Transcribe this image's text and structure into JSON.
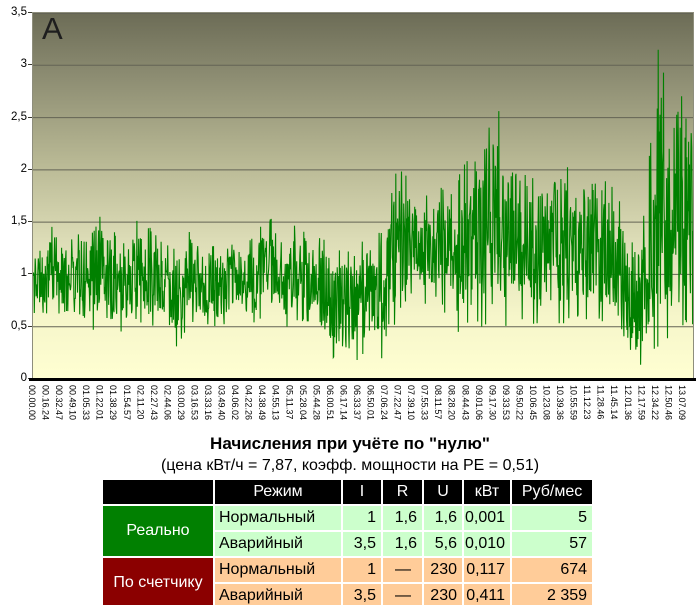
{
  "colors": {
    "line": "#008000",
    "header_bg": "#000000",
    "group_real_bg": "#018001",
    "group_meter_bg": "#8b0000",
    "rows_real_bg": "#ccffcc",
    "rows_meter_bg": "#ffcc99"
  },
  "chart_data": {
    "type": "line",
    "title": "",
    "annotation": "А",
    "xlabel": "",
    "ylabel": "",
    "ylim": [
      0,
      3.5
    ],
    "grid": true,
    "legend": "none",
    "y_ticks": [
      {
        "label": "3,5",
        "value": 3.5
      },
      {
        "label": "3",
        "value": 3
      },
      {
        "label": "2,5",
        "value": 2.5
      },
      {
        "label": "2",
        "value": 2
      },
      {
        "label": "1,5",
        "value": 1.5
      },
      {
        "label": "1",
        "value": 1
      },
      {
        "label": "0,5",
        "value": 0.5
      },
      {
        "label": "0",
        "value": 0
      }
    ],
    "x_labels": [
      "00.00.00",
      "00.16.24",
      "00.32.47",
      "00.49.10",
      "01.05.33",
      "01.22.01",
      "01.38.29",
      "01.54.57",
      "02.11.20",
      "02.27.43",
      "02.44.06",
      "03.00.29",
      "03.16.53",
      "03.33.16",
      "03.49.40",
      "04.06.02",
      "04.22.26",
      "04.38.49",
      "04.55.13",
      "05.11.37",
      "05.28.04",
      "05.44.28",
      "06.00.51",
      "06.17.14",
      "06.33.37",
      "06.50.01",
      "07.06.24",
      "07.22.47",
      "07.39.10",
      "07.55.33",
      "08.11.57",
      "08.28.20",
      "08.44.43",
      "09.01.06",
      "09.17.30",
      "09.33.53",
      "09.50.22",
      "10.06.45",
      "10.23.08",
      "10.39.36",
      "10.55.59",
      "11.12.23",
      "11.28.46",
      "11.45.14",
      "12.01.36",
      "12.17.59",
      "12.34.22",
      "12.50.46",
      "13.07.09"
    ],
    "series": [
      {
        "envelope_by_interval": [
          [
            0.62,
            1.32
          ],
          [
            0.6,
            1.5
          ],
          [
            0.65,
            1.3
          ],
          [
            0.6,
            1.42
          ],
          [
            0.45,
            1.64
          ],
          [
            0.6,
            1.48
          ],
          [
            0.42,
            1.3
          ],
          [
            0.55,
            1.52
          ],
          [
            0.5,
            1.45
          ],
          [
            0.5,
            1.3
          ],
          [
            0.28,
            1.25
          ],
          [
            0.55,
            1.45
          ],
          [
            0.5,
            1.32
          ],
          [
            0.5,
            1.26
          ],
          [
            0.55,
            1.4
          ],
          [
            0.5,
            1.3
          ],
          [
            0.55,
            1.45
          ],
          [
            0.6,
            1.55
          ],
          [
            0.5,
            1.35
          ],
          [
            0.55,
            1.6
          ],
          [
            0.5,
            1.4
          ],
          [
            0.25,
            1.3
          ],
          [
            0.08,
            1.25
          ],
          [
            0.15,
            1.2
          ],
          [
            0.3,
            1.5
          ],
          [
            0.15,
            1.4
          ],
          [
            0.6,
            2.05
          ],
          [
            0.8,
            1.9
          ],
          [
            0.7,
            1.75
          ],
          [
            0.8,
            1.85
          ],
          [
            0.4,
            1.8
          ],
          [
            0.5,
            2.1
          ],
          [
            0.5,
            2.45
          ],
          [
            0.4,
            2.85
          ],
          [
            0.5,
            2.2
          ],
          [
            0.55,
            2.25
          ],
          [
            0.5,
            1.9
          ],
          [
            0.55,
            2.1
          ],
          [
            0.5,
            2.15
          ],
          [
            0.6,
            1.9
          ],
          [
            0.5,
            2.2
          ],
          [
            0.55,
            1.95
          ],
          [
            0.4,
            1.8
          ],
          [
            0.08,
            1.3
          ],
          [
            0.15,
            1.6
          ],
          [
            0.3,
            3.25
          ],
          [
            0.4,
            2.4
          ],
          [
            0.5,
            2.9
          ]
        ]
      }
    ]
  },
  "table": {
    "title": "Начисления при учёте по \"нулю\"",
    "subtitle": "(цена кВт/ч = 7,87, коэфф. мощности на PE = 0,51)",
    "col_headers": [
      "Режим",
      "I",
      "R",
      "U",
      "кВт",
      "Руб/мес"
    ],
    "groups": [
      {
        "label": "Реально",
        "rows": [
          [
            "Нормальный",
            "1",
            "1,6",
            "1,6",
            "0,001",
            "5"
          ],
          [
            "Аварийный",
            "3,5",
            "1,6",
            "5,6",
            "0,010",
            "57"
          ]
        ]
      },
      {
        "label": "По счетчику",
        "rows": [
          [
            "Нормальный",
            "1",
            "—",
            "230",
            "0,117",
            "674"
          ],
          [
            "Аварийный",
            "3,5",
            "—",
            "230",
            "0,411",
            "2 359"
          ]
        ]
      }
    ]
  }
}
